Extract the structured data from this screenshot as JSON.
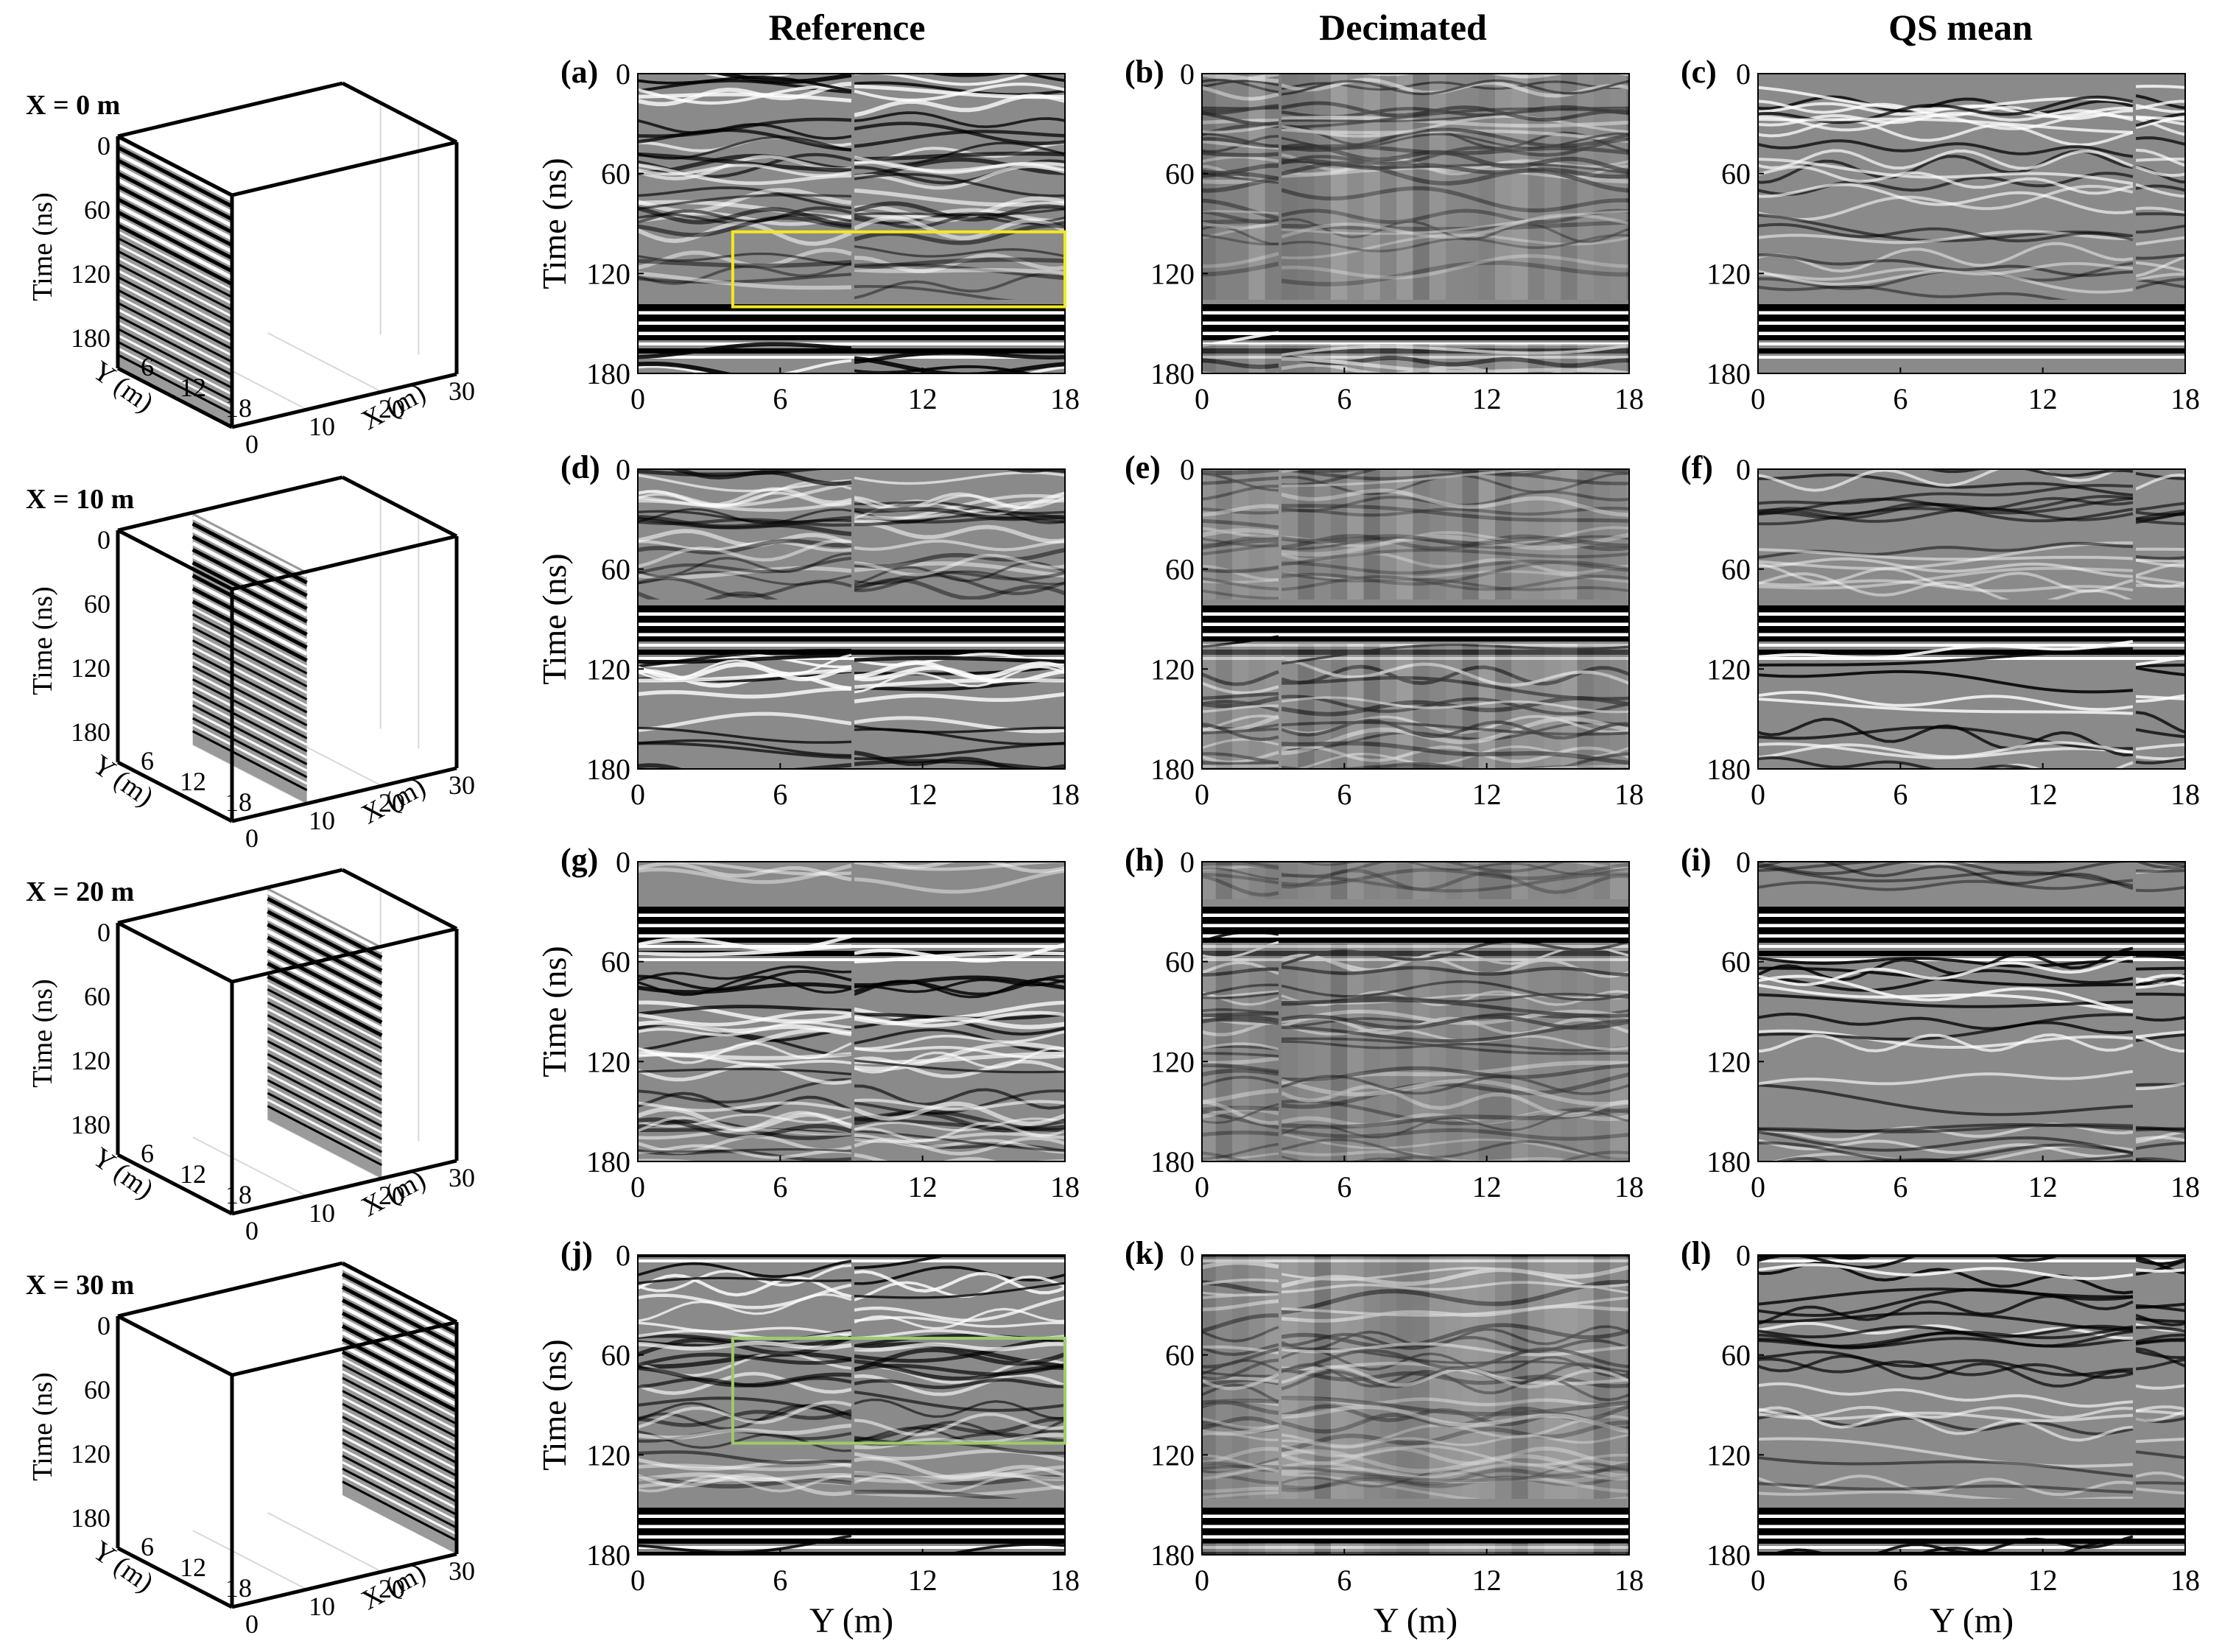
{
  "column_titles": [
    "Reference",
    "Decimated",
    "QS mean"
  ],
  "rows": [
    {
      "x_label": "X = 0 m",
      "x_pos": 0
    },
    {
      "x_label": "X = 10 m",
      "x_pos": 10
    },
    {
      "x_label": "X = 20 m",
      "x_pos": 20
    },
    {
      "x_label": "X = 30 m",
      "x_pos": 30
    }
  ],
  "panel_letters": [
    "(a)",
    "(b)",
    "(c)",
    "(d)",
    "(e)",
    "(f)",
    "(g)",
    "(h)",
    "(i)",
    "(j)",
    "(k)",
    "(l)"
  ],
  "colors": {
    "box_yellow": "#f2ea1c",
    "box_green": "#9ccc6a"
  },
  "chart_data": [
    {
      "type": "heatmap",
      "description_kind": "GPR radargram panels (4 rows x 3 columns)",
      "xlabel": "Y (m)",
      "ylabel": "Time (ns)",
      "xlim": [
        0,
        18
      ],
      "ylim": [
        180,
        0
      ],
      "xticks": [
        "0",
        "6",
        "12",
        "18"
      ],
      "yticks": [
        "0",
        "60",
        "120",
        "180"
      ],
      "highlight_boxes": [
        {
          "panel": "(a)",
          "y_range": [
            4,
            18
          ],
          "time_range": [
            95,
            140
          ],
          "color": "yellow"
        },
        {
          "panel": "(j)",
          "y_range": [
            4,
            18
          ],
          "time_range": [
            50,
            113
          ],
          "color": "green"
        }
      ]
    },
    {
      "type": "3d-slice",
      "xlabel": "X (m)",
      "ylabel": "Y (m)",
      "zlabel": "Time (ns)",
      "xticks": [
        "0",
        "10",
        "20",
        "30"
      ],
      "yticks": [
        "6",
        "12",
        "18"
      ],
      "zticks": [
        "0",
        "60",
        "120",
        "180"
      ]
    }
  ]
}
